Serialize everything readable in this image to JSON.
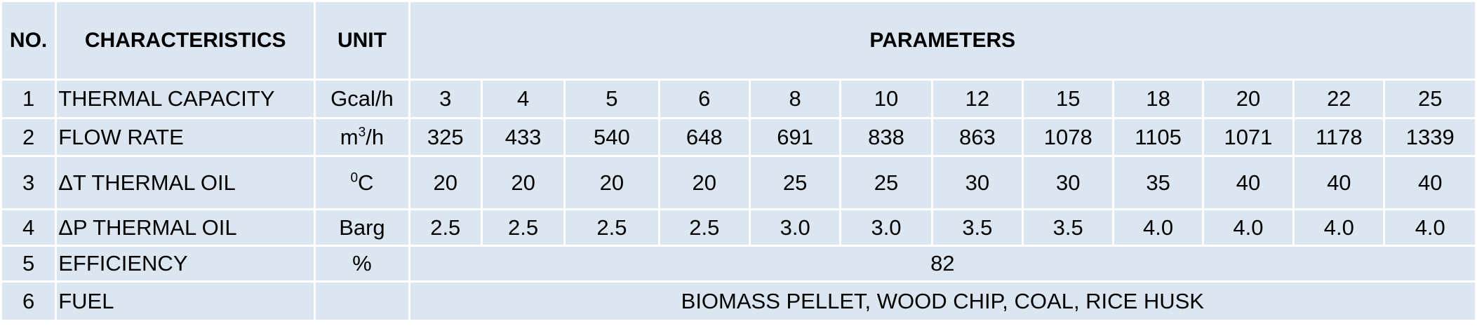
{
  "header": {
    "no": "NO.",
    "characteristics": "CHARACTERISTICS",
    "unit": "UNIT",
    "parameters": "PARAMETERS"
  },
  "rows": [
    {
      "no": "1",
      "characteristic": "THERMAL CAPACITY",
      "unit": "Gcal/h",
      "values": [
        "3",
        "4",
        "5",
        "6",
        "8",
        "10",
        "12",
        "15",
        "18",
        "20",
        "22",
        "25"
      ]
    },
    {
      "no": "2",
      "characteristic": "FLOW RATE",
      "unit_base": "m",
      "unit_sup": "3",
      "unit_tail": "/h",
      "values": [
        "325",
        "433",
        "540",
        "648",
        "691",
        "838",
        "863",
        "1078",
        "1105",
        "1071",
        "1178",
        "1339"
      ]
    },
    {
      "no": "3",
      "characteristic": "ΔT THERMAL OIL",
      "unit_sup": "0",
      "unit_tail": "C",
      "values": [
        "20",
        "20",
        "20",
        "20",
        "25",
        "25",
        "30",
        "30",
        "35",
        "40",
        "40",
        "40"
      ]
    },
    {
      "no": "4",
      "characteristic": "ΔP THERMAL OIL",
      "unit": "Barg",
      "values": [
        "2.5",
        "2.5",
        "2.5",
        "2.5",
        "3.0",
        "3.0",
        "3.5",
        "3.5",
        "4.0",
        "4.0",
        "4.0",
        "4.0"
      ]
    },
    {
      "no": "5",
      "characteristic": "EFFICIENCY",
      "unit": "%",
      "value": "82"
    },
    {
      "no": "6",
      "characteristic": "FUEL",
      "unit": "",
      "value": "BIOMASS PELLET, WOOD CHIP, COAL, RICE HUSK"
    }
  ]
}
